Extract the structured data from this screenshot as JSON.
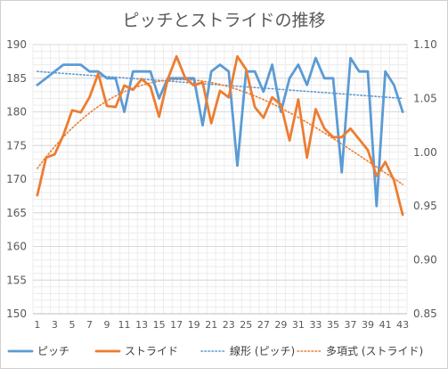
{
  "chart_data": {
    "type": "line",
    "title": "ピッチとストライドの推移",
    "x": [
      1,
      2,
      3,
      4,
      5,
      6,
      7,
      8,
      9,
      10,
      11,
      12,
      13,
      14,
      15,
      16,
      17,
      18,
      19,
      20,
      21,
      22,
      23,
      24,
      25,
      26,
      27,
      28,
      29,
      30,
      31,
      32,
      33,
      34,
      35,
      36,
      37,
      38,
      39,
      40,
      41,
      42,
      43
    ],
    "x_tick_labels": [
      "1",
      "3",
      "5",
      "7",
      "9",
      "11",
      "13",
      "15",
      "17",
      "19",
      "21",
      "23",
      "25",
      "27",
      "29",
      "31",
      "33",
      "35",
      "37",
      "39",
      "41",
      "43"
    ],
    "y_left": {
      "ylim": [
        150,
        190
      ],
      "ticks": [
        "150",
        "155",
        "160",
        "165",
        "170",
        "175",
        "180",
        "185",
        "190"
      ]
    },
    "y_right": {
      "ylim": [
        0.85,
        1.1
      ],
      "ticks": [
        "0.85",
        "0.90",
        "0.95",
        "1.00",
        "1.05",
        "1.10"
      ]
    },
    "series": [
      {
        "name": "ピッチ",
        "axis": "left",
        "color": "#5b9bd5",
        "values": [
          184,
          185,
          186,
          187,
          187,
          187,
          186,
          186,
          185,
          185,
          180,
          186,
          186,
          186,
          182,
          185,
          185,
          185,
          185,
          178,
          186,
          187,
          186,
          172,
          186,
          186,
          183,
          187,
          180,
          185,
          187,
          184,
          188,
          185,
          185,
          171,
          188,
          186,
          186,
          166,
          186,
          184,
          180
        ]
      },
      {
        "name": "ストライド",
        "axis": "right",
        "color": "#ed7d31",
        "values": [
          0.96,
          0.995,
          0.998,
          1.016,
          1.039,
          1.037,
          1.051,
          1.073,
          1.043,
          1.042,
          1.062,
          1.058,
          1.068,
          1.061,
          1.033,
          1.068,
          1.089,
          1.069,
          1.062,
          1.065,
          1.027,
          1.057,
          1.051,
          1.089,
          1.077,
          1.042,
          1.032,
          1.051,
          1.044,
          1.011,
          1.049,
          0.995,
          1.04,
          1.022,
          1.014,
          1.014,
          1.022,
          1.012,
          1.002,
          0.978,
          0.991,
          0.974,
          0.942
        ]
      }
    ],
    "trendlines": [
      {
        "name": "線形 (ピッチ)",
        "type": "linear",
        "axis": "left",
        "color": "#5b9bd5",
        "start": 186,
        "end": 182
      },
      {
        "name": "多項式 (ストライド)",
        "type": "polynomial",
        "axis": "right",
        "color": "#ed7d31"
      }
    ],
    "grid": true,
    "legend_placement": "bottom"
  }
}
